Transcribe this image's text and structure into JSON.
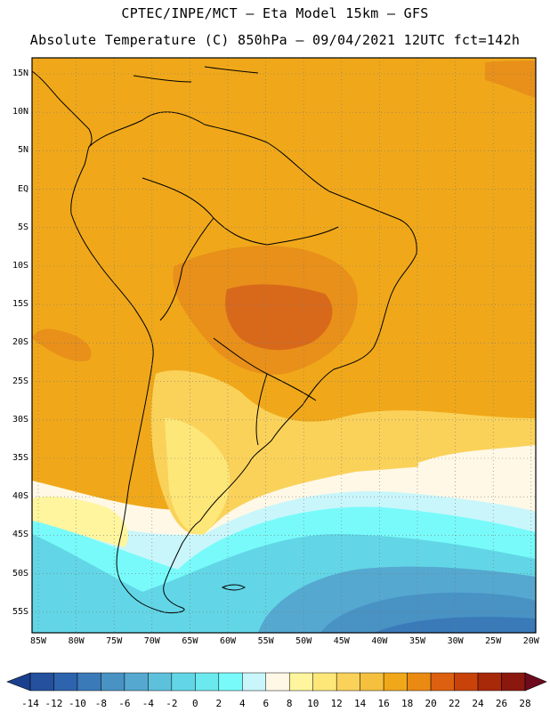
{
  "header": {
    "line1": "CPTEC/INPE/MCT –  Eta Model 15km – GFS",
    "line2": "Absolute Temperature (C) 850hPa – 09/04/2021 12UTC fct=142h"
  },
  "lat_labels": [
    "15N",
    "10N",
    "5N",
    "EQ",
    "5S",
    "10S",
    "15S",
    "20S",
    "25S",
    "30S",
    "35S",
    "40S",
    "45S",
    "50S",
    "55S"
  ],
  "lon_labels": [
    "85W",
    "80W",
    "75W",
    "70W",
    "65W",
    "60W",
    "55W",
    "50W",
    "45W",
    "40W",
    "35W",
    "30W",
    "25W",
    "20W"
  ],
  "colorbar": {
    "labels": [
      "-14",
      "-12",
      "-10",
      "-8",
      "-6",
      "-4",
      "-2",
      "0",
      "2",
      "4",
      "6",
      "8",
      "10",
      "12",
      "14",
      "16",
      "18",
      "20",
      "22",
      "24",
      "26",
      "28"
    ],
    "colors": [
      "#1a3f8f",
      "#24509e",
      "#2e64ad",
      "#3a7ab9",
      "#4892c4",
      "#55a8d0",
      "#5dc1dc",
      "#62d6e6",
      "#6ce9ef",
      "#78fafa",
      "#c9f6fb",
      "#fff8e6",
      "#fff59e",
      "#fde779",
      "#fad25a",
      "#f5c03e",
      "#f0a81a",
      "#ea8a12",
      "#dc6010",
      "#c8420a",
      "#a8280a",
      "#8a180e",
      "#6e0a1e"
    ]
  },
  "field_colors": {
    "hot": "#d8691a",
    "warm_dark": "#e8901a",
    "warm": "#f0a81a",
    "mild": "#f5c03e",
    "mild2": "#fad25a",
    "cool": "#fde779",
    "cooler": "#fff59e",
    "pale": "#fff8e6",
    "ice": "#c9f6fb",
    "cyan1": "#78fafa",
    "cyan2": "#62d6e6",
    "cyan3": "#55a8d0",
    "blue1": "#4892c4",
    "blue2": "#3a7ab9"
  }
}
